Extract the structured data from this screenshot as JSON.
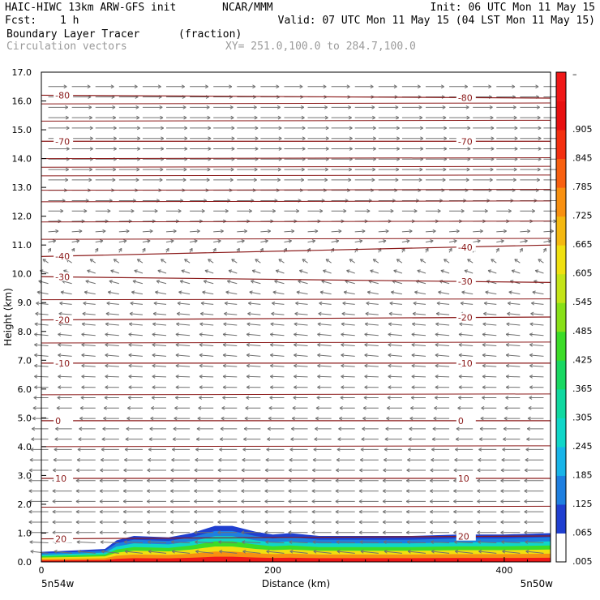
{
  "header": {
    "model_line": "HAIC-HIWC 13km ARW-GFS init",
    "org": "NCAR/MMM",
    "init": "Init: 06 UTC Mon 11 May 15",
    "fcst_label": "Fcst:",
    "fcst_value": "1 h",
    "valid": "Valid: 07 UTC Mon 11 May 15 (04 LST Mon 11 May 15)",
    "field_name": "Boundary Layer Tracer",
    "field_unit": "(fraction)",
    "vector_name": "Circulation vectors",
    "xy_range": "XY= 251.0,100.0 to 284.7,100.0"
  },
  "colors": {
    "isotherm": "#8b1a1a",
    "vector": "#707070",
    "frame": "#000000"
  },
  "chart_data": {
    "type": "heatmap",
    "xlabel": "Distance (km)",
    "ylabel": "Height (km)",
    "xlim": [
      0,
      440
    ],
    "ylim": [
      0,
      17
    ],
    "x_ticks": [
      0,
      200,
      400
    ],
    "y_ticks": [
      "0.0",
      "1.0",
      "2.0",
      "3.0",
      "4.0",
      "5.0",
      "6.0",
      "7.0",
      "8.0",
      "9.0",
      "10.0",
      "11.0",
      "12.0",
      "13.0",
      "14.0",
      "15.0",
      "16.0",
      "17.0"
    ],
    "x_left_label": "5n54w",
    "x_right_label": "5n50w",
    "colorbar": {
      "labels": [
        ".005",
        ".065",
        ".125",
        ".185",
        ".245",
        ".305",
        ".365",
        ".425",
        ".485",
        ".545",
        ".605",
        ".665",
        ".725",
        ".785",
        ".845",
        ".905"
      ],
      "top_label": "–",
      "colors": [
        "#ffffff",
        "#1f3fd0",
        "#1e7fe0",
        "#18b4e8",
        "#10d6c8",
        "#10d8a0",
        "#19d862",
        "#3cdc28",
        "#88e018",
        "#c4e418",
        "#f0e010",
        "#f4b810",
        "#f89010",
        "#f86010",
        "#f43010",
        "#e81010",
        "#f01818"
      ]
    },
    "tracer_mask_top_km": [
      [
        0,
        0.35
      ],
      [
        30,
        0.4
      ],
      [
        55,
        0.45
      ],
      [
        65,
        0.75
      ],
      [
        80,
        0.9
      ],
      [
        110,
        0.85
      ],
      [
        130,
        1.0
      ],
      [
        150,
        1.25
      ],
      [
        165,
        1.25
      ],
      [
        185,
        1.05
      ],
      [
        200,
        0.95
      ],
      [
        215,
        1.0
      ],
      [
        240,
        0.9
      ],
      [
        280,
        0.9
      ],
      [
        320,
        0.9
      ],
      [
        360,
        0.95
      ],
      [
        400,
        0.95
      ],
      [
        440,
        1.0
      ]
    ],
    "isotherms": [
      {
        "value": -80,
        "label": "-80",
        "x": [
          0,
          440
        ],
        "y": [
          16.2,
          16.1
        ]
      },
      {
        "value": -70,
        "label": "-70",
        "x": [
          0,
          440
        ],
        "y": [
          14.6,
          14.6
        ]
      },
      {
        "value": -40,
        "label": "-40",
        "x": [
          0,
          440
        ],
        "y": [
          10.6,
          11.0
        ]
      },
      {
        "value": -30,
        "label": "-30",
        "x": [
          0,
          440
        ],
        "y": [
          9.9,
          9.7
        ]
      },
      {
        "value": -20,
        "label": "-20",
        "x": [
          0,
          440
        ],
        "y": [
          8.4,
          8.5
        ]
      },
      {
        "value": -10,
        "label": "-10",
        "x": [
          0,
          440
        ],
        "y": [
          6.9,
          6.9
        ]
      },
      {
        "value": 0,
        "label": "0",
        "x": [
          0,
          440
        ],
        "y": [
          4.9,
          4.9
        ]
      },
      {
        "value": 10,
        "label": "10",
        "x": [
          0,
          440
        ],
        "y": [
          2.9,
          2.9
        ]
      },
      {
        "value": 20,
        "label": "20",
        "x": [
          0,
          440
        ],
        "y": [
          0.8,
          0.9
        ]
      }
    ],
    "unlabeled_isotherm_heights_km": [
      15.9,
      15.3,
      14.0,
      13.7,
      13.4,
      12.9,
      12.5,
      11.8,
      11.2,
      9.1,
      7.6,
      5.8,
      4.0,
      1.9
    ],
    "wind_profile": {
      "height_km": [
        0.2,
        1.0,
        2.0,
        3.0,
        4.0,
        5.0,
        6.0,
        7.0,
        8.0,
        9.0,
        9.5,
        10.0,
        10.5,
        11.0,
        12.0,
        13.0,
        14.0,
        15.0,
        16.0,
        17.0
      ],
      "u": [
        -0.8,
        -0.9,
        -0.9,
        -0.9,
        -0.8,
        -0.7,
        -0.6,
        -0.6,
        -0.6,
        -0.5,
        -0.4,
        -0.3,
        -0.1,
        0.2,
        0.6,
        0.9,
        1.0,
        1.0,
        0.9,
        0.8
      ],
      "w": [
        0.1,
        0.0,
        0.0,
        0.0,
        0.0,
        0.0,
        0.0,
        0.05,
        0.05,
        0.05,
        0.1,
        0.1,
        0.1,
        0.05,
        0.0,
        0.0,
        0.0,
        0.0,
        0.0,
        0.0
      ]
    }
  }
}
